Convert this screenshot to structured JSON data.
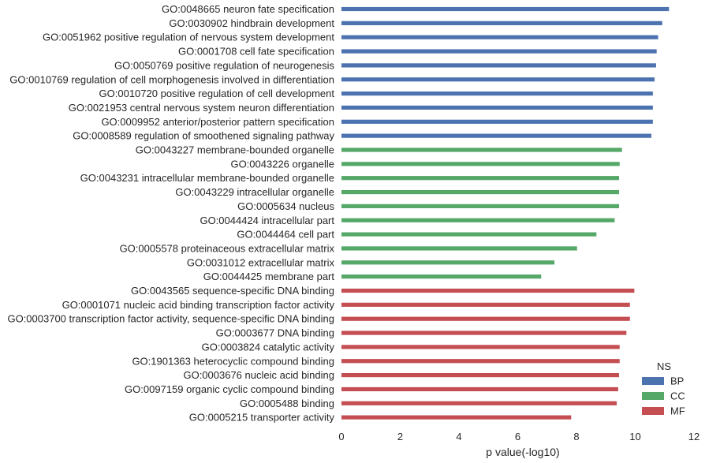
{
  "chart_data": {
    "type": "bar",
    "orientation": "horizontal",
    "xlabel": "p value(-log10)",
    "xlim": [
      0,
      12
    ],
    "xticks": [
      "0",
      "2",
      "4",
      "6",
      "8",
      "10",
      "12"
    ],
    "grid": false,
    "legend": {
      "title": "NS",
      "placement": "bottom-right",
      "entries": [
        {
          "label": "BP",
          "color": "#4c72b0"
        },
        {
          "label": "CC",
          "color": "#55a868"
        },
        {
          "label": "MF",
          "color": "#c44e52"
        }
      ]
    },
    "categories": [
      {
        "label": "GO:0048665 neuron fate specification",
        "value": 11.15,
        "ns": "BP"
      },
      {
        "label": "GO:0030902 hindbrain development",
        "value": 10.92,
        "ns": "BP"
      },
      {
        "label": "GO:0051962 positive regulation of nervous system development",
        "value": 10.78,
        "ns": "BP"
      },
      {
        "label": "GO:0001708 cell fate specification",
        "value": 10.73,
        "ns": "BP"
      },
      {
        "label": "GO:0050769 positive regulation of neurogenesis",
        "value": 10.71,
        "ns": "BP"
      },
      {
        "label": "GO:0010769 regulation of cell morphogenesis involved in differentiation",
        "value": 10.66,
        "ns": "BP"
      },
      {
        "label": "GO:0010720 positive regulation of cell development",
        "value": 10.6,
        "ns": "BP"
      },
      {
        "label": "GO:0021953 central nervous system neuron differentiation",
        "value": 10.6,
        "ns": "BP"
      },
      {
        "label": "GO:0009952 anterior/posterior pattern specification",
        "value": 10.6,
        "ns": "BP"
      },
      {
        "label": "GO:0008589 regulation of smoothened signaling pathway",
        "value": 10.55,
        "ns": "BP"
      },
      {
        "label": "GO:0043227 membrane-bounded organelle",
        "value": 9.55,
        "ns": "CC"
      },
      {
        "label": "GO:0043226 organelle",
        "value": 9.47,
        "ns": "CC"
      },
      {
        "label": "GO:0043231 intracellular membrane-bounded organelle",
        "value": 9.45,
        "ns": "CC"
      },
      {
        "label": "GO:0043229 intracellular organelle",
        "value": 9.45,
        "ns": "CC"
      },
      {
        "label": "GO:0005634 nucleus",
        "value": 9.45,
        "ns": "CC"
      },
      {
        "label": "GO:0044424 intracellular part",
        "value": 9.3,
        "ns": "CC"
      },
      {
        "label": "GO:0044464 cell part",
        "value": 8.68,
        "ns": "CC"
      },
      {
        "label": "GO:0005578 proteinaceous extracellular matrix",
        "value": 8.02,
        "ns": "CC"
      },
      {
        "label": "GO:0031012 extracellular matrix",
        "value": 7.25,
        "ns": "CC"
      },
      {
        "label": "GO:0044425 membrane part",
        "value": 6.8,
        "ns": "CC"
      },
      {
        "label": "GO:0043565 sequence-specific DNA binding",
        "value": 9.97,
        "ns": "MF"
      },
      {
        "label": "GO:0001071 nucleic acid binding transcription factor activity",
        "value": 9.82,
        "ns": "MF"
      },
      {
        "label": "GO:0003700 transcription factor activity, sequence-specific DNA binding",
        "value": 9.82,
        "ns": "MF"
      },
      {
        "label": "GO:0003677 DNA binding",
        "value": 9.7,
        "ns": "MF"
      },
      {
        "label": "GO:0003824 catalytic activity",
        "value": 9.47,
        "ns": "MF"
      },
      {
        "label": "GO:1901363 heterocyclic compound binding",
        "value": 9.47,
        "ns": "MF"
      },
      {
        "label": "GO:0003676 nucleic acid binding",
        "value": 9.45,
        "ns": "MF"
      },
      {
        "label": "GO:0097159 organic cyclic compound binding",
        "value": 9.42,
        "ns": "MF"
      },
      {
        "label": "GO:0005488 binding",
        "value": 9.37,
        "ns": "MF"
      },
      {
        "label": "GO:0005215 transporter activity",
        "value": 7.82,
        "ns": "MF"
      }
    ]
  }
}
